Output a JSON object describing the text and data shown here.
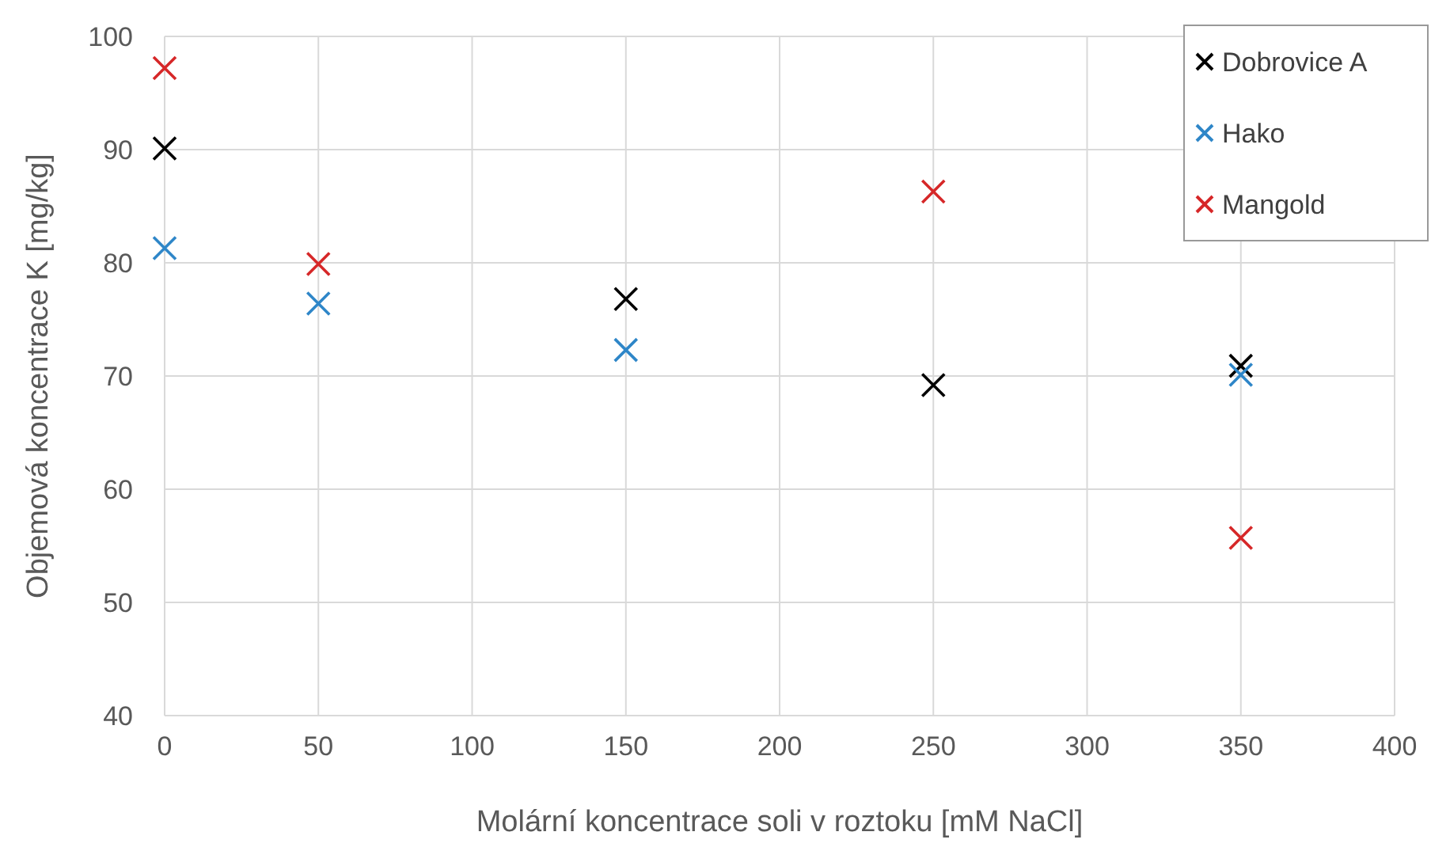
{
  "chart_data": {
    "type": "scatter",
    "xlabel": "Molární koncentrace soli v roztoku [mM NaCl]",
    "ylabel": "Objemová koncentrace K [mg/kg]",
    "xlim": [
      0,
      400
    ],
    "xticks": [
      0,
      50,
      100,
      150,
      200,
      250,
      300,
      350,
      400
    ],
    "ylim": [
      40,
      100
    ],
    "yticks": [
      40,
      50,
      60,
      70,
      80,
      90,
      100
    ],
    "grid": true,
    "legend": "top right",
    "marker": "cross",
    "series": [
      {
        "name": "Dobrovice A",
        "color": "#000000",
        "x": [
          0,
          150,
          250,
          350
        ],
        "values": [
          90.1,
          76.8,
          69.2,
          70.9
        ]
      },
      {
        "name": "Hako",
        "color": "#2e86c8",
        "x": [
          0,
          50,
          150,
          350
        ],
        "values": [
          81.3,
          76.4,
          72.3,
          70.1
        ]
      },
      {
        "name": "Mangold",
        "color": "#d62728",
        "x": [
          0,
          50,
          250,
          350
        ],
        "values": [
          97.2,
          79.9,
          86.3,
          55.7
        ]
      }
    ]
  }
}
